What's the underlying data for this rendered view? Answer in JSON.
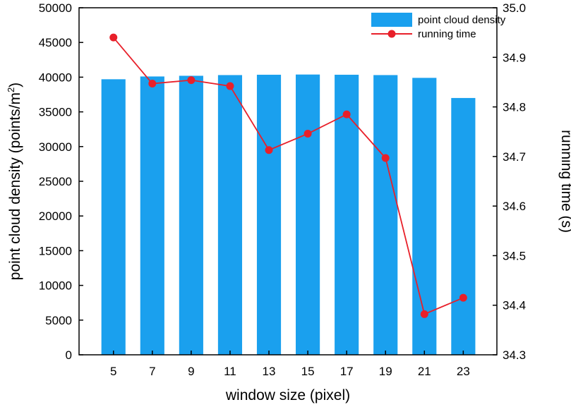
{
  "chart_data": {
    "type": "bar+line",
    "title": "",
    "xlabel": "window size (pixel)",
    "ylabel_left": "point cloud density (points/m",
    "ylabel_left_sup": "2",
    "ylabel_left_tail": ")",
    "ylabel_right": "running time (s)",
    "categories": [
      "5",
      "7",
      "9",
      "11",
      "13",
      "15",
      "17",
      "19",
      "21",
      "23"
    ],
    "y_left_lim": [
      0,
      50000
    ],
    "y_left_ticks": [
      "0",
      "5000",
      "10000",
      "15000",
      "20000",
      "25000",
      "30000",
      "35000",
      "40000",
      "45000",
      "50000"
    ],
    "y_right_lim": [
      34.3,
      35.0
    ],
    "y_right_ticks": [
      "34.3",
      "34.4",
      "34.5",
      "34.6",
      "34.7",
      "34.8",
      "34.9",
      "35.0"
    ],
    "grid": false,
    "legend_position": "top-right",
    "series": [
      {
        "name": "point cloud density",
        "kind": "bar",
        "axis": "left",
        "color": "#1aa0ee",
        "values": [
          39700,
          40100,
          40200,
          40300,
          40350,
          40380,
          40350,
          40300,
          39900,
          37000
        ]
      },
      {
        "name": "running time",
        "kind": "line",
        "axis": "right",
        "color": "#e8202a",
        "values": [
          34.94,
          34.847,
          34.854,
          34.842,
          34.713,
          34.746,
          34.785,
          34.697,
          34.382,
          34.415
        ]
      }
    ]
  }
}
